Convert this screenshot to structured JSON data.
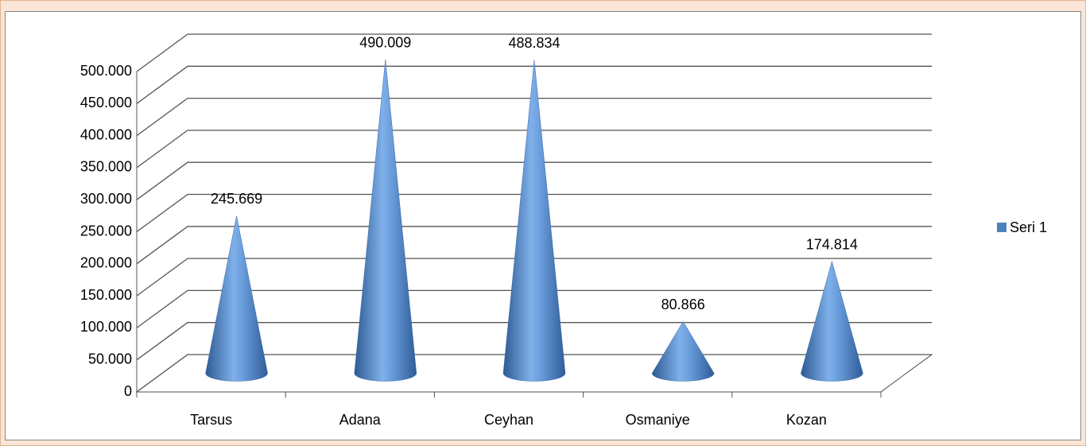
{
  "chart_data": {
    "type": "cone",
    "categories": [
      "Tarsus",
      "Adana",
      "Ceyhan",
      "Osmaniye",
      "Kozan"
    ],
    "series": [
      {
        "name": "Seri 1",
        "color": "#4f81bd",
        "values": [
          245669,
          490009,
          488834,
          80866,
          174814
        ],
        "value_labels": [
          "245.669",
          "490.009",
          "488.834",
          "80.866",
          "174.814"
        ]
      }
    ],
    "ylim": [
      0,
      500000
    ],
    "yticks": [
      0,
      {
        "value": 50000,
        "label": "50.000"
      },
      {
        "value": 100000,
        "label": "100.000"
      },
      {
        "value": 150000,
        "label": "150.000"
      },
      {
        "value": 200000,
        "label": "200.000"
      },
      {
        "value": 250000,
        "label": "250.000"
      },
      {
        "value": 300000,
        "label": "300.000"
      },
      {
        "value": 350000,
        "label": "350.000"
      },
      {
        "value": 400000,
        "label": "400.000"
      },
      {
        "value": 450000,
        "label": "450.000"
      },
      {
        "value": 500000,
        "label": "500.000"
      }
    ],
    "grid": true,
    "legend": "right"
  }
}
